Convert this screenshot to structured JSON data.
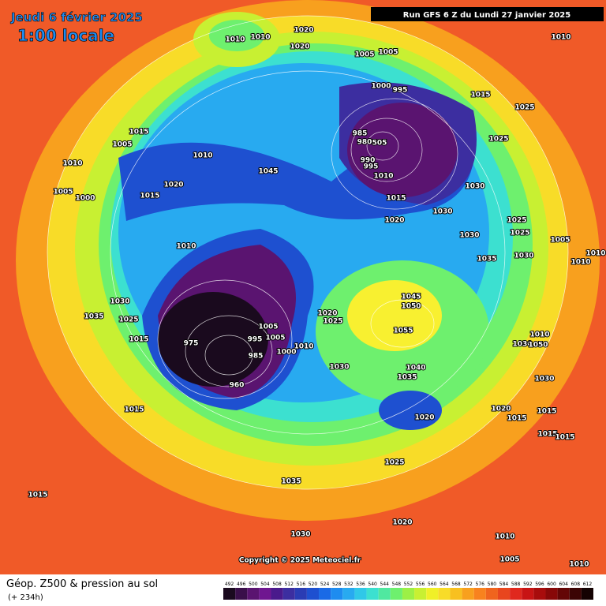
{
  "header": {
    "date": "Jeudi 6 février 2025",
    "time": "1:00 locale",
    "run": "Run GFS 6 Z du Lundi 27 janvier 2025"
  },
  "copyright": "Copyright © 2025 Meteociel.fr",
  "footer": {
    "title": "Géop. Z500 & pression au sol",
    "lead": "(+ 234h)"
  },
  "legend": {
    "values": [
      492,
      496,
      500,
      504,
      508,
      512,
      516,
      520,
      524,
      528,
      532,
      536,
      540,
      544,
      548,
      552,
      556,
      560,
      564,
      568,
      572,
      576,
      580,
      584,
      588,
      592,
      596,
      600,
      604,
      608,
      612
    ],
    "colors": [
      "#1a0a1e",
      "#3a0f4a",
      "#5a1470",
      "#6f1690",
      "#4a1a8c",
      "#3c2ea0",
      "#2a3cb4",
      "#1e50d0",
      "#1a6ae6",
      "#1e8cf0",
      "#28aaf0",
      "#30c8e8",
      "#3ce0d0",
      "#50e8a0",
      "#6ef06e",
      "#9cf046",
      "#c8f032",
      "#f0f028",
      "#f8dc28",
      "#f8c020",
      "#f8a01e",
      "#f8821e",
      "#f0641e",
      "#e8461e",
      "#e0281e",
      "#c81414",
      "#a80c0c",
      "#880808",
      "#640606",
      "#3c0404",
      "#140202"
    ]
  },
  "isobar_labels": [
    "1010",
    "1010",
    "1020",
    "1020",
    "1005",
    "1005",
    "1010",
    "1000",
    "995",
    "1015",
    "1025",
    "1015",
    "1005",
    "985",
    "980",
    "505",
    "1025",
    "1010",
    "1010",
    "990",
    "995",
    "1010",
    "1045",
    "1020",
    "1005",
    "1000",
    "1015",
    "1030",
    "1015",
    "1020",
    "1030",
    "1025",
    "1025",
    "1030",
    "1005",
    "1010",
    "1030",
    "1035",
    "1010",
    "1010",
    "1045",
    "1050",
    "1030",
    "1035",
    "1025",
    "1020",
    "1025",
    "1005",
    "1005",
    "995",
    "1055",
    "1015",
    "975",
    "1010",
    "1000",
    "1010",
    "1030",
    "1050",
    "985",
    "1030",
    "1040",
    "1035",
    "960",
    "1030",
    "1015",
    "1020",
    "1020",
    "1015",
    "1015",
    "1015",
    "1015",
    "1025",
    "1035",
    "1015",
    "1020",
    "1030",
    "1010",
    "1005",
    "1010"
  ]
}
